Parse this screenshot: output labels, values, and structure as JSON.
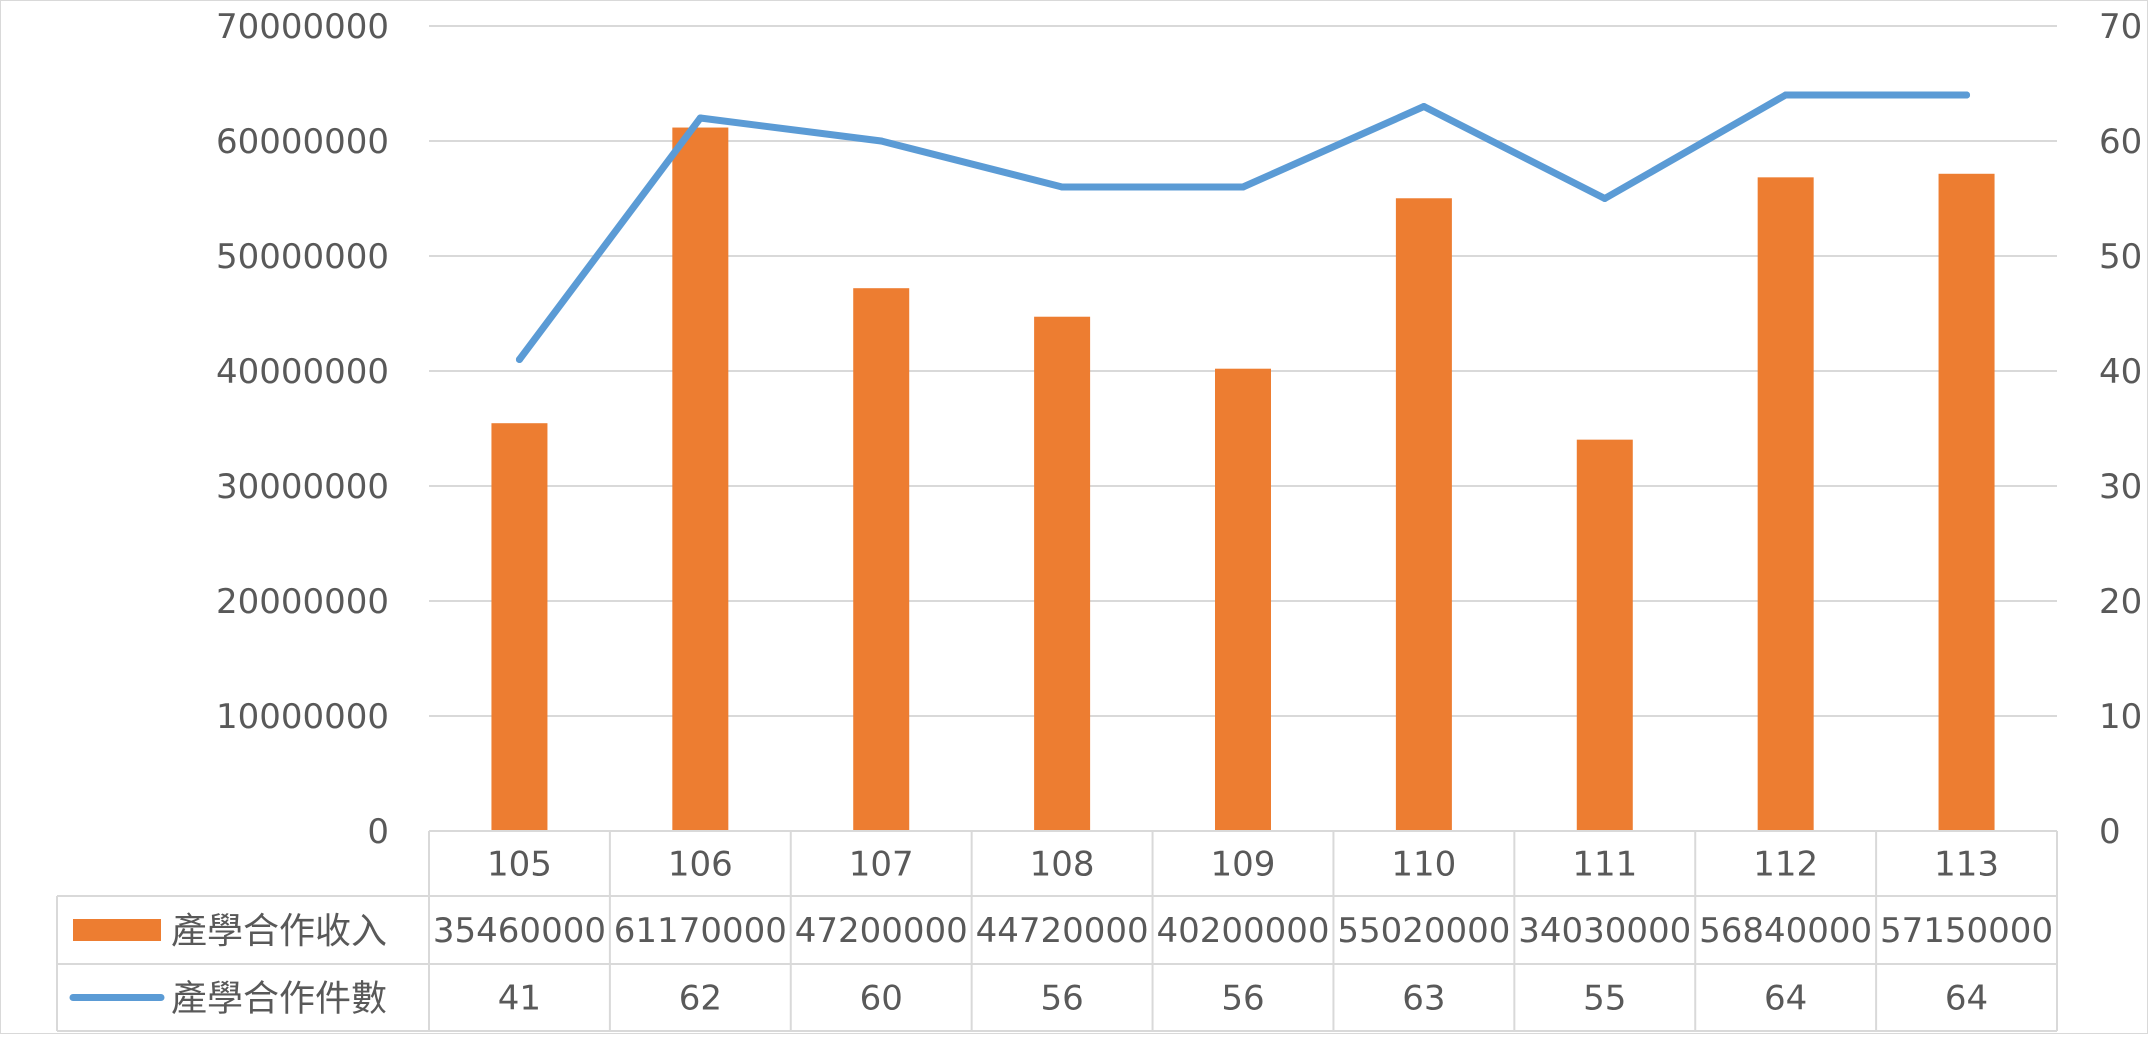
{
  "colors": {
    "bar": "#ED7D31",
    "line": "#5B9BD5",
    "grid": "#D9D9D9",
    "text": "#595959"
  },
  "chart_data": {
    "type": "bar",
    "combo": "bar-line-with-data-table",
    "categories": [
      "105",
      "106",
      "107",
      "108",
      "109",
      "110",
      "111",
      "112",
      "113"
    ],
    "series": [
      {
        "name": "產學合作收入",
        "type": "bar",
        "axis": "left",
        "values": [
          35460000,
          61170000,
          47200000,
          44720000,
          40200000,
          55020000,
          34030000,
          56840000,
          57150000
        ]
      },
      {
        "name": "產學合作件數",
        "type": "line",
        "axis": "right",
        "values": [
          41,
          62,
          60,
          56,
          56,
          63,
          55,
          64,
          64
        ]
      }
    ],
    "y_left": {
      "range": [
        0,
        70000000
      ],
      "ticks": [
        "0",
        "10000000",
        "20000000",
        "30000000",
        "40000000",
        "50000000",
        "60000000",
        "70000000"
      ]
    },
    "y_right": {
      "range": [
        0,
        70
      ],
      "ticks": [
        "0",
        "10",
        "20",
        "30",
        "40",
        "50",
        "60",
        "70"
      ]
    },
    "grid": true,
    "legend": "data-table",
    "table_rows": [
      {
        "label": "產學合作收入",
        "cells": [
          "35460000",
          "61170000",
          "47200000",
          "44720000",
          "40200000",
          "55020000",
          "34030000",
          "56840000",
          "57150000"
        ]
      },
      {
        "label": "產學合作件數",
        "cells": [
          "41",
          "62",
          "60",
          "56",
          "56",
          "63",
          "55",
          "64",
          "64"
        ]
      }
    ]
  }
}
